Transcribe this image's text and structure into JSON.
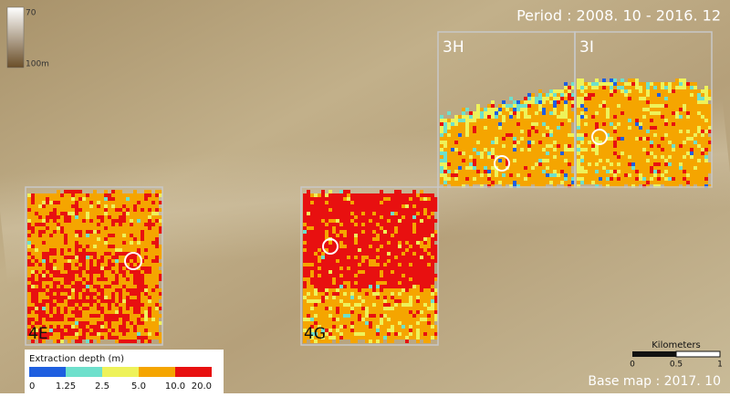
{
  "header": {
    "period": "Period : 2008. 10 - 2016. 12",
    "base_map": "Base map : 2017. 10"
  },
  "depth_bar": {
    "top": "70",
    "bottom": "100m"
  },
  "blocks": [
    {
      "label": "3H"
    },
    {
      "label": "3I"
    },
    {
      "label": "4E"
    },
    {
      "label": "4G"
    }
  ],
  "legend": {
    "title": "Extraction depth (m)",
    "ticks": [
      "0",
      "1.25",
      "2.5",
      "5.0",
      "10.0",
      "20.0"
    ],
    "colors": [
      "#1f5fe0",
      "#6ee0cc",
      "#eef25a",
      "#f5a500",
      "#e81010"
    ]
  },
  "scale_bar": {
    "title": "Kilometers",
    "ticks": [
      "0",
      "0.5",
      "1"
    ]
  }
}
